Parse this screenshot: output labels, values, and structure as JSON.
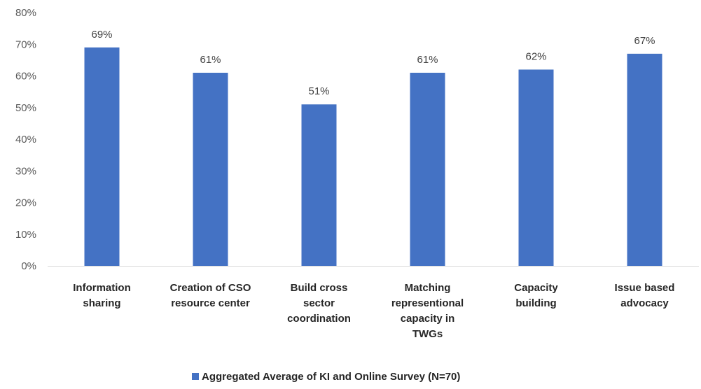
{
  "chart_data": {
    "type": "bar",
    "categories": [
      "Information sharing",
      "Creation of CSO resource center",
      "Build cross sector coordination",
      "Matching representional capacity in TWGs",
      "Capacity building",
      "Issue based advocacy"
    ],
    "category_lines": [
      [
        "Information",
        "sharing"
      ],
      [
        "Creation of CSO",
        "resource center"
      ],
      [
        "Build cross",
        "sector",
        "coordination"
      ],
      [
        "Matching",
        "representional",
        "capacity in",
        "TWGs"
      ],
      [
        "Capacity",
        "building"
      ],
      [
        "Issue based",
        "advocacy"
      ]
    ],
    "series": [
      {
        "name": "Aggregated Average of KI and Online Survey (N=70)",
        "values": [
          69,
          61,
          51,
          61,
          62,
          67
        ],
        "color": "#4472C4"
      }
    ],
    "data_labels": [
      "69%",
      "61%",
      "51%",
      "61%",
      "62%",
      "67%"
    ],
    "ylim": [
      0,
      80
    ],
    "yticks": [
      0,
      10,
      20,
      30,
      40,
      50,
      60,
      70,
      80
    ],
    "ytick_labels": [
      "0%",
      "10%",
      "20%",
      "30%",
      "40%",
      "50%",
      "60%",
      "70%",
      "80%"
    ],
    "grid": false,
    "legend_position": "bottom",
    "title": "",
    "xlabel": "",
    "ylabel": ""
  },
  "legend": {
    "label": "Aggregated Average of KI and Online Survey (N=70)"
  }
}
